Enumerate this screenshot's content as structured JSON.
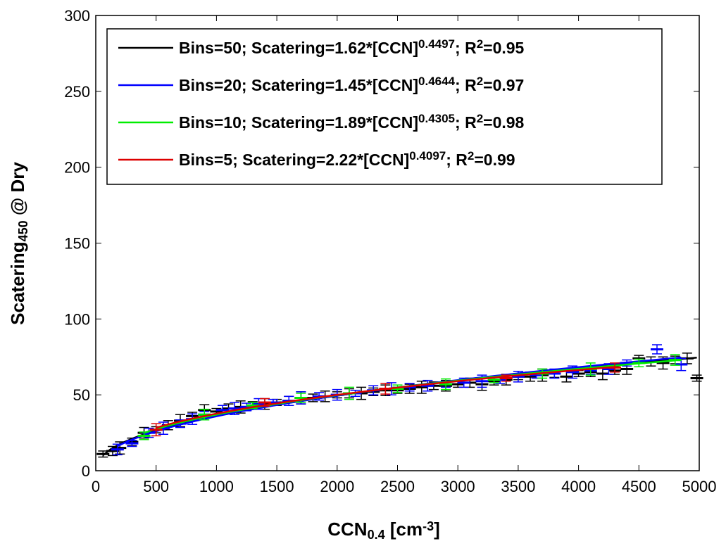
{
  "chart_data": {
    "type": "line",
    "xlabel": "CCN",
    "xlabel_sub": "0.4",
    "xlabel_unit": " [cm",
    "xlabel_unit_sup": "-3",
    "xlabel_unit_end": "]",
    "ylabel": "Scatering",
    "ylabel_sub": "450",
    "ylabel_tail": " @ Dry",
    "xlim": [
      0,
      5000
    ],
    "ylim": [
      0,
      300
    ],
    "xticks": [
      "0",
      "500",
      "1000",
      "1500",
      "2000",
      "2500",
      "3000",
      "3500",
      "4000",
      "4500",
      "5000"
    ],
    "yticks": [
      "0",
      "50",
      "100",
      "150",
      "200",
      "250",
      "300"
    ],
    "grid": false,
    "legend_position": "top",
    "series": [
      {
        "name": "Bins=50",
        "legend_main": "Bins=50; Scatering=1.62*[CCN]",
        "legend_exp": "0.4497",
        "legend_r2": "; R",
        "legend_r2_sup": "2",
        "legend_r2_val": "=0.95",
        "color": "#000000",
        "coef": 1.62,
        "exponent": 0.4497,
        "x": [
          60,
          140,
          200,
          300,
          400,
          500,
          600,
          700,
          800,
          900,
          1000,
          1100,
          1200,
          1300,
          1400,
          1500,
          1600,
          1700,
          1800,
          1900,
          2000,
          2100,
          2200,
          2300,
          2400,
          2500,
          2600,
          2700,
          2800,
          2900,
          3000,
          3100,
          3200,
          3300,
          3400,
          3500,
          3600,
          3700,
          3800,
          3900,
          4000,
          4100,
          4200,
          4300,
          4400,
          4500,
          4600,
          4700,
          4800,
          4900,
          4980
        ],
        "y": [
          11,
          13,
          15,
          19,
          25,
          27,
          30,
          33,
          36,
          40,
          39,
          41,
          42,
          43,
          44,
          45,
          46,
          48,
          48,
          49,
          50,
          51,
          51,
          52,
          53,
          53,
          54,
          55,
          56,
          56,
          57,
          58,
          57,
          59,
          60,
          62,
          62,
          63,
          64,
          62,
          64,
          65,
          64,
          66,
          67,
          74,
          72,
          71,
          73,
          74,
          61
        ]
      },
      {
        "name": "Bins=20",
        "legend_main": "Bins=20; Scatering=1.45*[CCN]",
        "legend_exp": "0.4644",
        "legend_r2": "; R",
        "legend_r2_sup": "2",
        "legend_r2_val": "=0.97",
        "color": "#0000ff",
        "coef": 1.45,
        "exponent": 0.4644,
        "x": [
          180,
          300,
          440,
          560,
          700,
          800,
          900,
          1050,
          1150,
          1250,
          1350,
          1470,
          1600,
          1700,
          1850,
          2000,
          2150,
          2300,
          2450,
          2600,
          2750,
          2900,
          3050,
          3200,
          3350,
          3500,
          3650,
          3800,
          3950,
          4100,
          4250,
          4400,
          4650,
          4850
        ],
        "y": [
          14,
          18,
          25,
          28,
          31,
          34,
          37,
          40,
          41,
          42,
          44,
          45,
          46,
          48,
          49,
          50,
          51,
          53,
          54,
          55,
          56,
          57,
          58,
          59,
          60,
          62,
          63,
          64,
          65,
          66,
          67,
          71,
          80,
          70
        ]
      },
      {
        "name": "Bins=10",
        "legend_main": "Bins=10; Scatering=1.89*[CCN]",
        "legend_exp": "0.4305",
        "legend_r2": "; R",
        "legend_r2_sup": "2",
        "legend_r2_val": "=0.98",
        "color": "#00ee00",
        "coef": 1.89,
        "exponent": 0.4305,
        "x": [
          400,
          900,
          1300,
          1700,
          2100,
          2500,
          2900,
          3300,
          3700,
          4100,
          4500,
          4800
        ],
        "y": [
          23,
          37,
          43,
          48,
          51,
          54,
          57,
          60,
          64,
          67,
          71,
          73
        ]
      },
      {
        "name": "Bins=5",
        "legend_main": "Bins=5;   Scatering=2.22*[CCN]",
        "legend_exp": "0.4097",
        "legend_r2": "; R",
        "legend_r2_sup": "2",
        "legend_r2_val": "=0.99",
        "color": "#dd0000",
        "coef": 2.22,
        "exponent": 0.4097,
        "x": [
          500,
          1400,
          2400,
          3400,
          4300
        ],
        "y": [
          27,
          45,
          54,
          61,
          68
        ]
      }
    ]
  }
}
